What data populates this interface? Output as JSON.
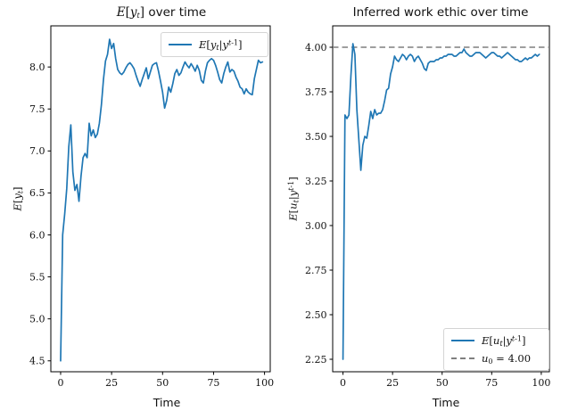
{
  "figure": {
    "background": "#ffffff",
    "accent_blue": "#1f77b4",
    "reference_gray": "#7f7f7f"
  },
  "chart_data": [
    {
      "type": "line",
      "title_segments": [
        {
          "math": "E[y_{t}]"
        },
        {
          "text": " over time"
        }
      ],
      "xlabel": "Time",
      "ylabel_math": "E[y_{t}]",
      "xticks": [
        "0",
        "25",
        "50",
        "75",
        "100"
      ],
      "yticks": [
        "4.5",
        "5.0",
        "5.5",
        "6.0",
        "6.5",
        "7.0",
        "7.5",
        "8.0"
      ],
      "xlim": [
        -4.8,
        102.8
      ],
      "ylim": [
        4.37,
        8.49
      ],
      "grid": false,
      "legend_position": "upper right",
      "x_start": 0,
      "x_step": 1,
      "series": [
        {
          "name_math": "E[y_{t}|y^{t-1}]",
          "color": "#1f77b4",
          "style": "solid",
          "values": [
            4.5,
            6.0,
            6.25,
            6.55,
            7.05,
            7.31,
            6.75,
            6.53,
            6.6,
            6.4,
            6.7,
            6.92,
            6.97,
            6.92,
            7.33,
            7.18,
            7.25,
            7.16,
            7.2,
            7.33,
            7.55,
            7.85,
            8.07,
            8.15,
            8.33,
            8.22,
            8.28,
            8.1,
            7.97,
            7.93,
            7.91,
            7.94,
            7.99,
            8.03,
            8.05,
            8.02,
            7.98,
            7.9,
            7.83,
            7.77,
            7.85,
            7.92,
            7.99,
            7.86,
            7.94,
            8.02,
            8.04,
            8.05,
            7.95,
            7.83,
            7.7,
            7.51,
            7.6,
            7.76,
            7.7,
            7.8,
            7.92,
            7.97,
            7.9,
            7.93,
            8.0,
            8.06,
            8.02,
            7.99,
            8.04,
            8.0,
            7.95,
            8.02,
            7.96,
            7.84,
            7.81,
            7.95,
            8.05,
            8.08,
            8.1,
            8.08,
            8.02,
            7.94,
            7.85,
            7.81,
            7.92,
            8.0,
            8.06,
            7.94,
            7.97,
            7.95,
            7.88,
            7.83,
            7.76,
            7.74,
            7.68,
            7.74,
            7.7,
            7.68,
            7.67,
            7.86,
            7.97,
            8.08,
            8.05,
            8.06
          ]
        }
      ]
    },
    {
      "type": "line",
      "title_segments": [
        {
          "text": "Inferred work ethic over time"
        }
      ],
      "xlabel": "Time",
      "ylabel_math": "E[u_{t}|y^{t-1}]",
      "xticks": [
        "0",
        "25",
        "50",
        "75",
        "100"
      ],
      "yticks": [
        "2.25",
        "2.50",
        "2.75",
        "3.00",
        "3.25",
        "3.50",
        "3.75",
        "4.00"
      ],
      "xlim": [
        -5.2,
        104.1
      ],
      "ylim": [
        2.18,
        4.12
      ],
      "grid": false,
      "legend_position": "lower right",
      "x_start": 0,
      "x_step": 1,
      "ref_line": {
        "value": 4.0,
        "label_math": "u_{0} = 4.00",
        "color": "#7f7f7f",
        "style": "dashed"
      },
      "series": [
        {
          "name_math": "E[u_{t}|y^{t-1}]",
          "color": "#1f77b4",
          "style": "solid",
          "values": [
            2.25,
            3.62,
            3.6,
            3.62,
            3.84,
            4.02,
            3.96,
            3.65,
            3.48,
            3.31,
            3.45,
            3.5,
            3.49,
            3.56,
            3.64,
            3.6,
            3.65,
            3.62,
            3.63,
            3.63,
            3.65,
            3.7,
            3.76,
            3.77,
            3.85,
            3.89,
            3.95,
            3.93,
            3.92,
            3.94,
            3.96,
            3.95,
            3.93,
            3.95,
            3.96,
            3.95,
            3.92,
            3.94,
            3.95,
            3.93,
            3.91,
            3.88,
            3.87,
            3.91,
            3.92,
            3.92,
            3.92,
            3.93,
            3.93,
            3.94,
            3.94,
            3.95,
            3.95,
            3.96,
            3.96,
            3.96,
            3.95,
            3.95,
            3.96,
            3.97,
            3.97,
            3.99,
            3.97,
            3.96,
            3.95,
            3.95,
            3.96,
            3.97,
            3.97,
            3.97,
            3.96,
            3.95,
            3.94,
            3.95,
            3.96,
            3.97,
            3.97,
            3.96,
            3.95,
            3.95,
            3.94,
            3.95,
            3.96,
            3.97,
            3.96,
            3.95,
            3.94,
            3.93,
            3.93,
            3.92,
            3.92,
            3.93,
            3.94,
            3.93,
            3.94,
            3.94,
            3.95,
            3.96,
            3.95,
            3.96
          ]
        }
      ]
    }
  ]
}
